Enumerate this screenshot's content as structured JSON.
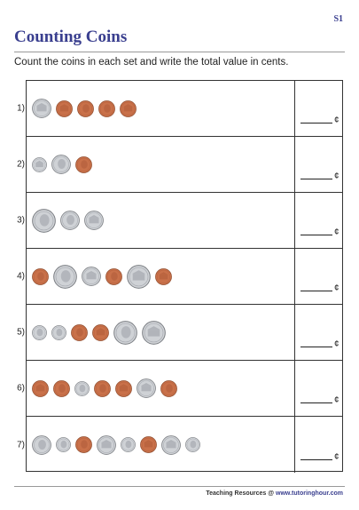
{
  "header": {
    "code": "S1",
    "title": "Counting Coins"
  },
  "instruction": "Count the coins in each set and write the total value in cents.",
  "cent_symbol": "¢",
  "footer": {
    "prefix": "Teaching Resources @ ",
    "site": "www.tutoringhour.com"
  },
  "colors": {
    "title": "#3a3f8f",
    "penny": "#c9714a",
    "silver": "#cfd2d6"
  },
  "coin_sizes": {
    "dime": 17,
    "penny": 19,
    "nickel": 22,
    "quarter": 27
  },
  "problems": [
    {
      "number": "1)",
      "coins": [
        {
          "type": "nickel",
          "side": "tails"
        },
        {
          "type": "penny",
          "side": "tails"
        },
        {
          "type": "penny",
          "side": "heads"
        },
        {
          "type": "penny",
          "side": "heads"
        },
        {
          "type": "penny",
          "side": "tails"
        }
      ]
    },
    {
      "number": "2)",
      "coins": [
        {
          "type": "dime",
          "side": "tails"
        },
        {
          "type": "nickel",
          "side": "heads"
        },
        {
          "type": "penny",
          "side": "heads"
        }
      ]
    },
    {
      "number": "3)",
      "coins": [
        {
          "type": "quarter",
          "side": "heads"
        },
        {
          "type": "nickel",
          "side": "heads"
        },
        {
          "type": "nickel",
          "side": "tails"
        }
      ]
    },
    {
      "number": "4)",
      "coins": [
        {
          "type": "penny",
          "side": "heads"
        },
        {
          "type": "quarter",
          "side": "heads"
        },
        {
          "type": "nickel",
          "side": "tails"
        },
        {
          "type": "penny",
          "side": "heads"
        },
        {
          "type": "quarter",
          "side": "tails"
        },
        {
          "type": "penny",
          "side": "tails"
        }
      ]
    },
    {
      "number": "5)",
      "coins": [
        {
          "type": "dime",
          "side": "heads"
        },
        {
          "type": "dime",
          "side": "heads"
        },
        {
          "type": "penny",
          "side": "heads"
        },
        {
          "type": "penny",
          "side": "tails"
        },
        {
          "type": "quarter",
          "side": "heads"
        },
        {
          "type": "quarter",
          "side": "tails"
        }
      ]
    },
    {
      "number": "6)",
      "coins": [
        {
          "type": "penny",
          "side": "tails"
        },
        {
          "type": "penny",
          "side": "heads"
        },
        {
          "type": "dime",
          "side": "heads"
        },
        {
          "type": "penny",
          "side": "heads"
        },
        {
          "type": "penny",
          "side": "tails"
        },
        {
          "type": "nickel",
          "side": "tails"
        },
        {
          "type": "penny",
          "side": "heads"
        }
      ]
    },
    {
      "number": "7)",
      "coins": [
        {
          "type": "nickel",
          "side": "heads"
        },
        {
          "type": "dime",
          "side": "heads"
        },
        {
          "type": "penny",
          "side": "heads"
        },
        {
          "type": "nickel",
          "side": "tails"
        },
        {
          "type": "dime",
          "side": "heads"
        },
        {
          "type": "penny",
          "side": "tails"
        },
        {
          "type": "nickel",
          "side": "tails"
        },
        {
          "type": "dime",
          "side": "heads"
        }
      ]
    }
  ]
}
